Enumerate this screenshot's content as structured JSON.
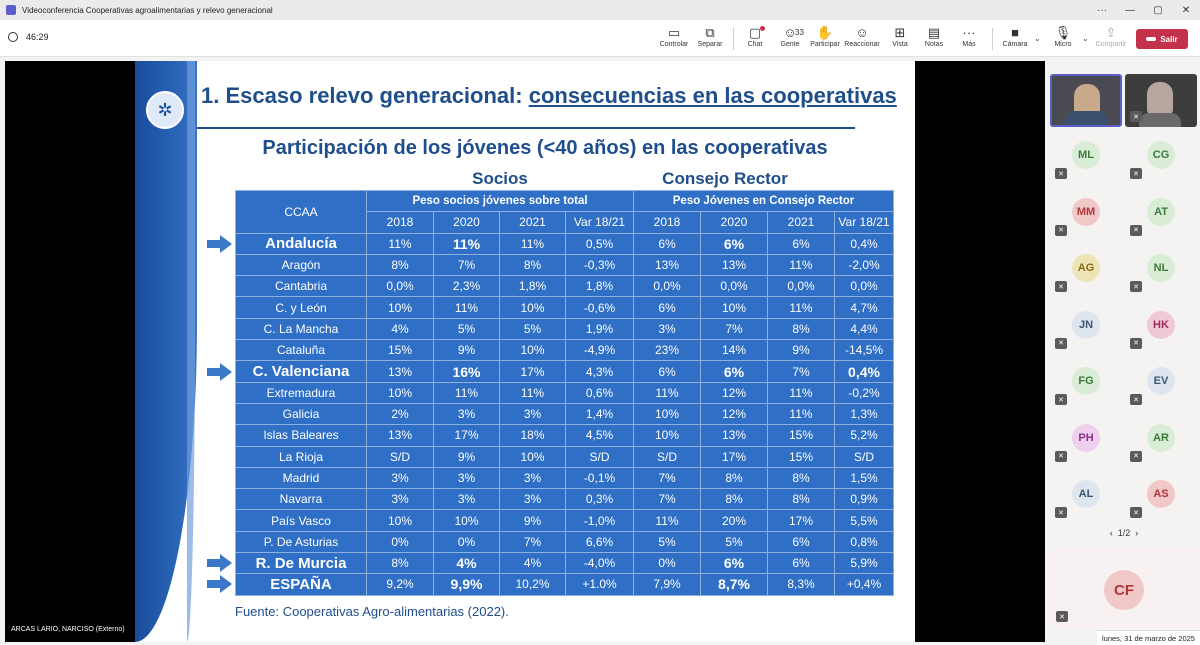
{
  "window": {
    "title": "Videoconferencia Cooperativas agroalimentarias y relevo generacional",
    "controls": [
      "···",
      "—",
      "▢",
      "✕"
    ]
  },
  "toolbar": {
    "timer": "46:29",
    "tools": [
      {
        "id": "controlar",
        "label": "Controlar",
        "icon": "control-icon"
      },
      {
        "id": "separar",
        "label": "Separar",
        "icon": "popout-icon"
      },
      {
        "id": "chat",
        "label": "Chat",
        "icon": "chat-icon"
      },
      {
        "id": "gente",
        "label": "Gente",
        "icon": "people-icon",
        "count": "33"
      },
      {
        "id": "participar",
        "label": "Participar",
        "icon": "raise-hand-icon"
      },
      {
        "id": "reaccionar",
        "label": "Reaccionar",
        "icon": "smile-icon"
      },
      {
        "id": "vista",
        "label": "Vista",
        "icon": "grid-icon"
      },
      {
        "id": "notas",
        "label": "Notas",
        "icon": "notes-icon"
      },
      {
        "id": "mas",
        "label": "Más",
        "icon": "more-icon"
      },
      {
        "id": "camara",
        "label": "Cámara",
        "icon": "camera-off-icon"
      },
      {
        "id": "micro",
        "label": "Micro",
        "icon": "mic-off-icon"
      },
      {
        "id": "compartir",
        "label": "Compartir",
        "icon": "share-icon"
      }
    ],
    "leave_label": "Salir"
  },
  "slide": {
    "title_prefix": "1. Escaso relevo generacional: ",
    "title_underlined": "consecuencias en las cooperativas",
    "subtitle": "Participación de los jóvenes (<40 años) en las cooperativas",
    "group1": "Socios",
    "group2": "Consejo Rector",
    "header_ccaa": "CCAA",
    "header_socios": "Peso socios jóvenes sobre total",
    "header_consejo": "Peso Jóvenes en Consejo Rector",
    "years": [
      "2018",
      "2020",
      "2021",
      "Var 18/21",
      "2018",
      "2020",
      "2021",
      "Var 18/21"
    ],
    "rows": [
      {
        "region": "Andalucía",
        "values": [
          "11%",
          "11%",
          "11%",
          "0,5%",
          "6%",
          "6%",
          "6%",
          "0,4%"
        ],
        "bold": true,
        "bold_cells": [
          1,
          5
        ],
        "arrow": true
      },
      {
        "region": "Aragón",
        "values": [
          "8%",
          "7%",
          "8%",
          "-0,3%",
          "13%",
          "13%",
          "11%",
          "-2,0%"
        ]
      },
      {
        "region": "Cantabria",
        "values": [
          "0,0%",
          "2,3%",
          "1,8%",
          "1,8%",
          "0,0%",
          "0,0%",
          "0,0%",
          "0,0%"
        ]
      },
      {
        "region": "C. y León",
        "values": [
          "10%",
          "11%",
          "10%",
          "-0,6%",
          "6%",
          "10%",
          "11%",
          "4,7%"
        ]
      },
      {
        "region": "C. La Mancha",
        "values": [
          "4%",
          "5%",
          "5%",
          "1,9%",
          "3%",
          "7%",
          "8%",
          "4,4%"
        ]
      },
      {
        "region": "Cataluña",
        "values": [
          "15%",
          "9%",
          "10%",
          "-4,9%",
          "23%",
          "14%",
          "9%",
          "-14,5%"
        ]
      },
      {
        "region": "C. Valenciana",
        "values": [
          "13%",
          "16%",
          "17%",
          "4,3%",
          "6%",
          "6%",
          "7%",
          "0,4%"
        ],
        "bold": true,
        "bold_cells": [
          1,
          5,
          7
        ],
        "arrow": true
      },
      {
        "region": "Extremadura",
        "values": [
          "10%",
          "11%",
          "11%",
          "0,6%",
          "11%",
          "12%",
          "11%",
          "-0,2%"
        ]
      },
      {
        "region": "Galicia",
        "values": [
          "2%",
          "3%",
          "3%",
          "1,4%",
          "10%",
          "12%",
          "11%",
          "1,3%"
        ]
      },
      {
        "region": "Islas Baleares",
        "values": [
          "13%",
          "17%",
          "18%",
          "4,5%",
          "10%",
          "13%",
          "15%",
          "5,2%"
        ]
      },
      {
        "region": "La Rioja",
        "values": [
          "S/D",
          "9%",
          "10%",
          "S/D",
          "S/D",
          "17%",
          "15%",
          "S/D"
        ]
      },
      {
        "region": "Madrid",
        "values": [
          "3%",
          "3%",
          "3%",
          "-0,1%",
          "7%",
          "8%",
          "8%",
          "1,5%"
        ]
      },
      {
        "region": "Navarra",
        "values": [
          "3%",
          "3%",
          "3%",
          "0,3%",
          "7%",
          "8%",
          "8%",
          "0,9%"
        ]
      },
      {
        "region": "País Vasco",
        "values": [
          "10%",
          "10%",
          "9%",
          "-1,0%",
          "11%",
          "20%",
          "17%",
          "5,5%"
        ]
      },
      {
        "region": "P. De Asturias",
        "values": [
          "0%",
          "0%",
          "7%",
          "6,6%",
          "5%",
          "5%",
          "6%",
          "0,8%"
        ]
      },
      {
        "region": "R. De Murcia",
        "values": [
          "8%",
          "4%",
          "4%",
          "-4,0%",
          "0%",
          "6%",
          "6%",
          "5,9%"
        ],
        "bold": true,
        "bold_cells": [
          1,
          5
        ],
        "arrow": true
      },
      {
        "region": "ESPAÑA",
        "values": [
          "9,2%",
          "9,9%",
          "10,2%",
          "+1.0%",
          "7,9%",
          "8,7%",
          "8,3%",
          "+0,4%"
        ],
        "bold": true,
        "bold_cells": [
          1,
          5
        ],
        "arrow": true
      }
    ],
    "source": "Fuente: Cooperativas Agro-alimentarias (2022).",
    "speaker": "ARCAS LARIO, NARCISO (Externo)"
  },
  "participants": {
    "tiles": [
      {
        "initials": "ML",
        "bg": "#d8ecd6",
        "fg": "#3c7a3a"
      },
      {
        "initials": "CG",
        "bg": "#d8ecd6",
        "fg": "#3c7a3a"
      },
      {
        "initials": "MM",
        "bg": "#f1c8c8",
        "fg": "#b0363a"
      },
      {
        "initials": "AT",
        "bg": "#d8ecd6",
        "fg": "#3c7a3a"
      },
      {
        "initials": "AG",
        "bg": "#efe3b8",
        "fg": "#8a6d12"
      },
      {
        "initials": "NL",
        "bg": "#d8ecd6",
        "fg": "#3c7a3a"
      },
      {
        "initials": "JN",
        "bg": "#dde5ee",
        "fg": "#3c5670"
      },
      {
        "initials": "HK",
        "bg": "#f1c8d6",
        "fg": "#9a2f5a"
      },
      {
        "initials": "FG",
        "bg": "#d8ecd6",
        "fg": "#3c7a3a"
      },
      {
        "initials": "EV",
        "bg": "#dde5ee",
        "fg": "#3c5670"
      },
      {
        "initials": "PH",
        "bg": "#ecd0ec",
        "fg": "#8a2f8a"
      },
      {
        "initials": "AR",
        "bg": "#d8ecd6",
        "fg": "#3c7a3a"
      },
      {
        "initials": "AL",
        "bg": "#dde5ee",
        "fg": "#3c5670"
      },
      {
        "initials": "AS",
        "bg": "#f1c8c8",
        "fg": "#b0363a"
      }
    ],
    "page": "1/2",
    "big_tile": {
      "initials": "CF"
    }
  },
  "date": "lunes, 31 de marzo de 2025"
}
